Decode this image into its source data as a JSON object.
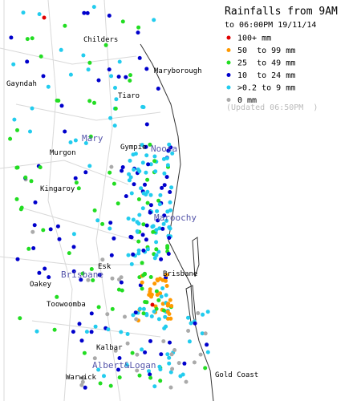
{
  "header": {
    "title": "Rainfalls from 9AM",
    "subtitle": "to 06:00PM 19/11/14"
  },
  "legend": [
    {
      "label": "100+ mm",
      "color": "#e00000"
    },
    {
      "label": "50  to 99 mm",
      "color": "#ff9900"
    },
    {
      "label": "25  to 49 mm",
      "color": "#22dd22"
    },
    {
      "label": "10  to 24 mm",
      "color": "#0000cc"
    },
    {
      "label": ">0.2 to 9 mm",
      "color": "#22ccee"
    },
    {
      "label": "0 mm",
      "color": "#aaaaaa"
    }
  ],
  "updated": "(Updated 06:50PM  )",
  "places": [
    "Childers",
    "Maryborough",
    "Gayndah",
    "Tiaro",
    "Gympie",
    "Murgon",
    "Kingaroy",
    "Esk",
    "Oakey",
    "Toowoomba",
    "Brisbane",
    "Kalbar",
    "Warwick",
    "Gold Coast"
  ],
  "basins": [
    "Mary",
    "Noosa",
    "Maroochy",
    "Brisbane",
    "Albert&Logan"
  ]
}
